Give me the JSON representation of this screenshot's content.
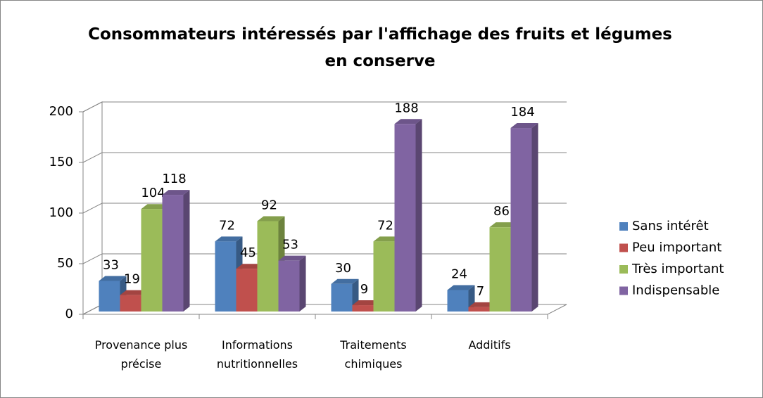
{
  "chart_data": {
    "type": "bar3d",
    "title": "Consommateurs intéressés par l'affichage des fruits et légumes en conserve",
    "categories": [
      "Provenance plus précise",
      "Informations nutritionnelles",
      "Traitements chimiques",
      "Additifs"
    ],
    "series": [
      {
        "name": "Sans intérêt",
        "color": "#4f81bd",
        "values": [
          33,
          72,
          30,
          24
        ]
      },
      {
        "name": "Peu important",
        "color": "#c0504d",
        "values": [
          19,
          45,
          9,
          7
        ]
      },
      {
        "name": "Très important",
        "color": "#9bbb59",
        "values": [
          104,
          92,
          72,
          86
        ]
      },
      {
        "name": "Indispensable",
        "color": "#8064a2",
        "values": [
          118,
          53,
          188,
          184
        ]
      }
    ],
    "ylim": [
      0,
      200
    ],
    "yticks": [
      0,
      50,
      100,
      150,
      200
    ],
    "grid": true,
    "legend": "right"
  }
}
